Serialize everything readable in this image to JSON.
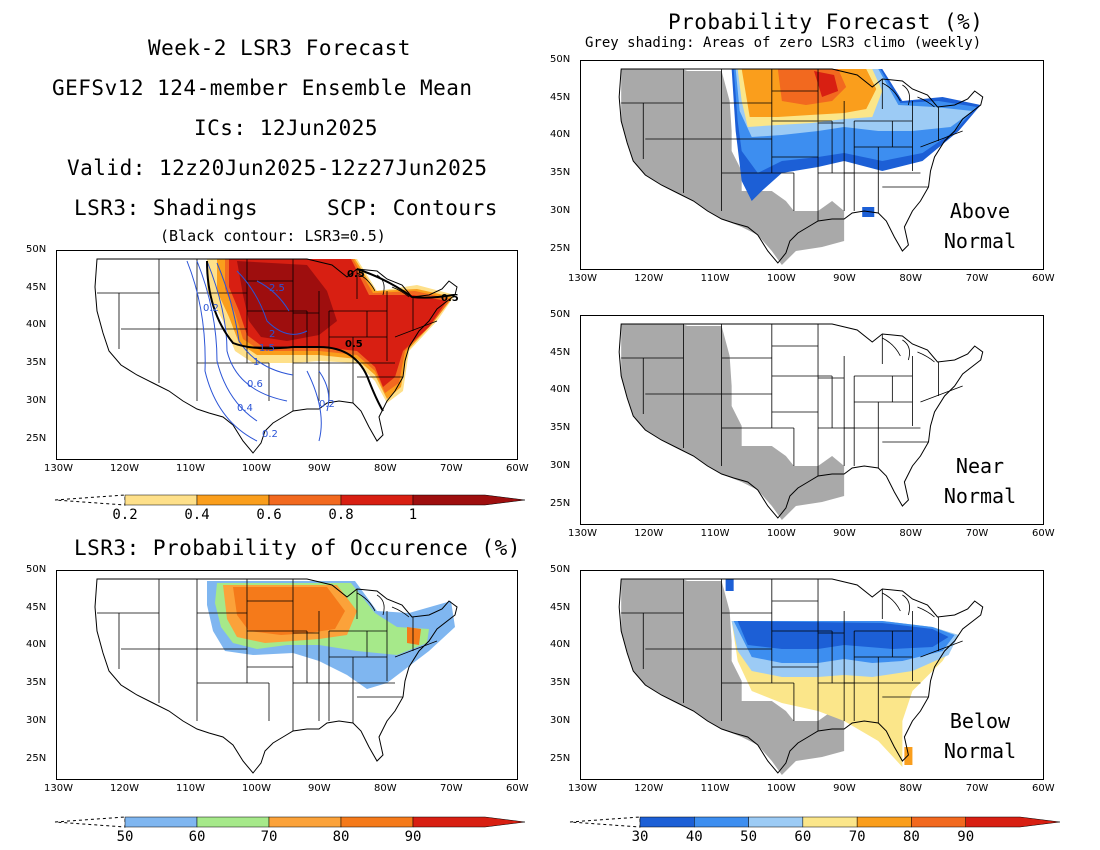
{
  "title_block": {
    "line1": "Week-2 LSR3 Forecast",
    "line2": "GEFSv12 124-member Ensemble Mean",
    "line3": "ICs: 12Jun2025",
    "line4": "Valid: 12z20Jun2025-12z27Jun2025",
    "line5_left": "LSR3: Shadings",
    "line5_right": "SCP: Contours",
    "note": "(Black contour: LSR3=0.5)"
  },
  "prob_title": "Probability Forecast (%)",
  "prob_subtitle": "Grey shading: Areas of zero LSR3 climo (weekly)",
  "occurrence_title": "LSR3: Probability of Occurence (%)",
  "lon_labels": [
    "130W",
    "120W",
    "110W",
    "100W",
    "90W",
    "80W",
    "70W",
    "60W"
  ],
  "lat_labels": [
    "50N",
    "45N",
    "40N",
    "35N",
    "30N",
    "25N"
  ],
  "panels": {
    "above": {
      "label_line1": "Above",
      "label_line2": "Normal"
    },
    "near": {
      "label_line1": "Near",
      "label_line2": "Normal"
    },
    "below": {
      "label_line1": "Below",
      "label_line2": "Normal"
    }
  },
  "contour_labels": [
    "2.5",
    "2",
    "1.5",
    "1",
    "0.6",
    "0.4",
    "0.2",
    "0.2",
    "0.2",
    "0.5",
    "0.5",
    "0.5"
  ],
  "colorbars": {
    "lsr3": {
      "labels": [
        "0.2",
        "0.4",
        "0.6",
        "0.8",
        "1"
      ],
      "colors": [
        "#fee08a",
        "#fa9e1c",
        "#f2691f",
        "#d81f12",
        "#9e0e0e"
      ]
    },
    "occurrence": {
      "labels": [
        "50",
        "60",
        "70",
        "80",
        "90"
      ],
      "colors": [
        "#7fb6f0",
        "#a6e98a",
        "#fba23a",
        "#f57a1a",
        "#d81f12"
      ]
    },
    "forecast": {
      "labels": [
        "30",
        "40",
        "50",
        "60",
        "70",
        "80",
        "90"
      ],
      "colors": [
        "#1c5fd6",
        "#3d8ef0",
        "#9ccbf5",
        "#fbe68a",
        "#fa9e1c",
        "#f2691f",
        "#d81f12"
      ]
    }
  },
  "colors": {
    "grey_zero_climo": "#a9a9a9",
    "contour_blue": "#2b54d6",
    "lsr3_line": "#000000"
  }
}
